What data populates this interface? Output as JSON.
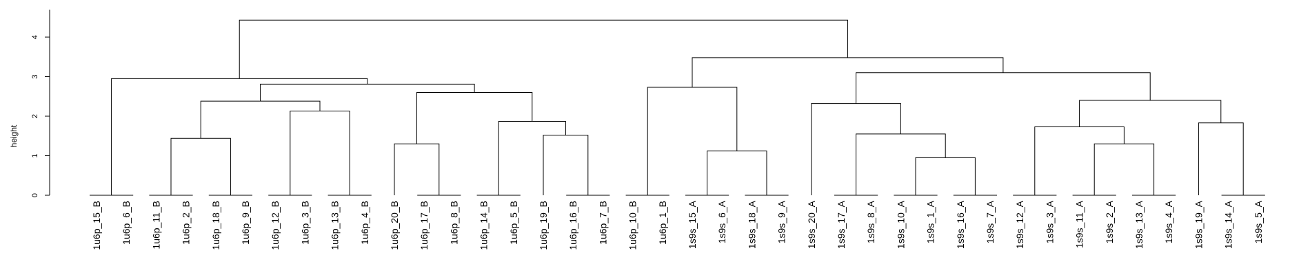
{
  "chart_data": {
    "type": "dendrogram",
    "ylabel": "height",
    "ylim": [
      0,
      4.5
    ],
    "yticks": [
      "0",
      "1",
      "2",
      "3",
      "4"
    ],
    "leaves": [
      "1u6p_15_B",
      "1u6p_6_B",
      "1u6p_11_B",
      "1u6p_2_B",
      "1u6p_18_B",
      "1u6p_9_B",
      "1u6p_12_B",
      "1u6p_3_B",
      "1u6p_13_B",
      "1u6p_4_B",
      "1u6p_20_B",
      "1u6p_17_B",
      "1u6p_8_B",
      "1u6p_14_B",
      "1u6p_5_B",
      "1u6p_19_B",
      "1u6p_16_B",
      "1u6p_7_B",
      "1u6p_10_B",
      "1u6p_1_B",
      "1s9s_15_A",
      "1s9s_6_A",
      "1s9s_18_A",
      "1s9s_9_A",
      "1s9s_20_A",
      "1s9s_17_A",
      "1s9s_8_A",
      "1s9s_10_A",
      "1s9s_1_A",
      "1s9s_16_A",
      "1s9s_7_A",
      "1s9s_12_A",
      "1s9s_3_A",
      "1s9s_11_A",
      "1s9s_2_A",
      "1s9s_13_A",
      "1s9s_4_A",
      "1s9s_19_A",
      "1s9s_14_A",
      "1s9s_5_A"
    ],
    "merges": [
      {
        "left": [
          "L",
          0
        ],
        "right": [
          "L",
          1
        ],
        "height": 0
      },
      {
        "left": [
          "L",
          2
        ],
        "right": [
          "L",
          3
        ],
        "height": 0
      },
      {
        "left": [
          "L",
          4
        ],
        "right": [
          "L",
          5
        ],
        "height": 0
      },
      {
        "left": [
          "L",
          6
        ],
        "right": [
          "L",
          7
        ],
        "height": 0
      },
      {
        "left": [
          "L",
          8
        ],
        "right": [
          "L",
          9
        ],
        "height": 0
      },
      {
        "left": [
          "L",
          11
        ],
        "right": [
          "L",
          12
        ],
        "height": 0
      },
      {
        "left": [
          "L",
          13
        ],
        "right": [
          "L",
          14
        ],
        "height": 0
      },
      {
        "left": [
          "L",
          16
        ],
        "right": [
          "L",
          17
        ],
        "height": 0
      },
      {
        "left": [
          "L",
          18
        ],
        "right": [
          "L",
          19
        ],
        "height": 0
      },
      {
        "left": [
          "L",
          20
        ],
        "right": [
          "L",
          21
        ],
        "height": 0
      },
      {
        "left": [
          "L",
          22
        ],
        "right": [
          "L",
          23
        ],
        "height": 0
      },
      {
        "left": [
          "L",
          25
        ],
        "right": [
          "L",
          26
        ],
        "height": 0
      },
      {
        "left": [
          "L",
          27
        ],
        "right": [
          "L",
          28
        ],
        "height": 0
      },
      {
        "left": [
          "L",
          29
        ],
        "right": [
          "L",
          30
        ],
        "height": 0
      },
      {
        "left": [
          "L",
          31
        ],
        "right": [
          "L",
          32
        ],
        "height": 0
      },
      {
        "left": [
          "L",
          33
        ],
        "right": [
          "L",
          34
        ],
        "height": 0
      },
      {
        "left": [
          "L",
          35
        ],
        "right": [
          "L",
          36
        ],
        "height": 0
      },
      {
        "left": [
          "L",
          38
        ],
        "right": [
          "L",
          39
        ],
        "height": 0
      },
      {
        "left": [
          "M",
          12
        ],
        "right": [
          "M",
          13
        ],
        "height": 0.95
      },
      {
        "left": [
          "M",
          9
        ],
        "right": [
          "M",
          10
        ],
        "height": 1.12
      },
      {
        "left": [
          "L",
          10
        ],
        "right": [
          "M",
          5
        ],
        "height": 1.3
      },
      {
        "left": [
          "M",
          15
        ],
        "right": [
          "M",
          16
        ],
        "height": 1.3
      },
      {
        "left": [
          "M",
          1
        ],
        "right": [
          "M",
          2
        ],
        "height": 1.44
      },
      {
        "left": [
          "L",
          15
        ],
        "right": [
          "M",
          7
        ],
        "height": 1.52
      },
      {
        "left": [
          "M",
          11
        ],
        "right": [
          "M",
          18
        ],
        "height": 1.55
      },
      {
        "left": [
          "M",
          14
        ],
        "right": [
          "M",
          21
        ],
        "height": 1.73
      },
      {
        "left": [
          "L",
          37
        ],
        "right": [
          "M",
          17
        ],
        "height": 1.83
      },
      {
        "left": [
          "M",
          6
        ],
        "right": [
          "M",
          23
        ],
        "height": 1.87
      },
      {
        "left": [
          "M",
          3
        ],
        "right": [
          "M",
          4
        ],
        "height": 2.13
      },
      {
        "left": [
          "L",
          24
        ],
        "right": [
          "M",
          24
        ],
        "height": 2.32
      },
      {
        "left": [
          "M",
          22
        ],
        "right": [
          "M",
          28
        ],
        "height": 2.38
      },
      {
        "left": [
          "M",
          25
        ],
        "right": [
          "M",
          26
        ],
        "height": 2.4
      },
      {
        "left": [
          "M",
          20
        ],
        "right": [
          "M",
          27
        ],
        "height": 2.6
      },
      {
        "left": [
          "M",
          8
        ],
        "right": [
          "M",
          19
        ],
        "height": 2.73
      },
      {
        "left": [
          "M",
          30
        ],
        "right": [
          "M",
          32
        ],
        "height": 2.81
      },
      {
        "left": [
          "M",
          0
        ],
        "right": [
          "M",
          34
        ],
        "height": 2.95
      },
      {
        "left": [
          "M",
          29
        ],
        "right": [
          "M",
          31
        ],
        "height": 3.1
      },
      {
        "left": [
          "M",
          33
        ],
        "right": [
          "M",
          36
        ],
        "height": 3.48
      },
      {
        "left": [
          "M",
          35
        ],
        "right": [
          "M",
          37
        ],
        "height": 4.43
      }
    ]
  }
}
